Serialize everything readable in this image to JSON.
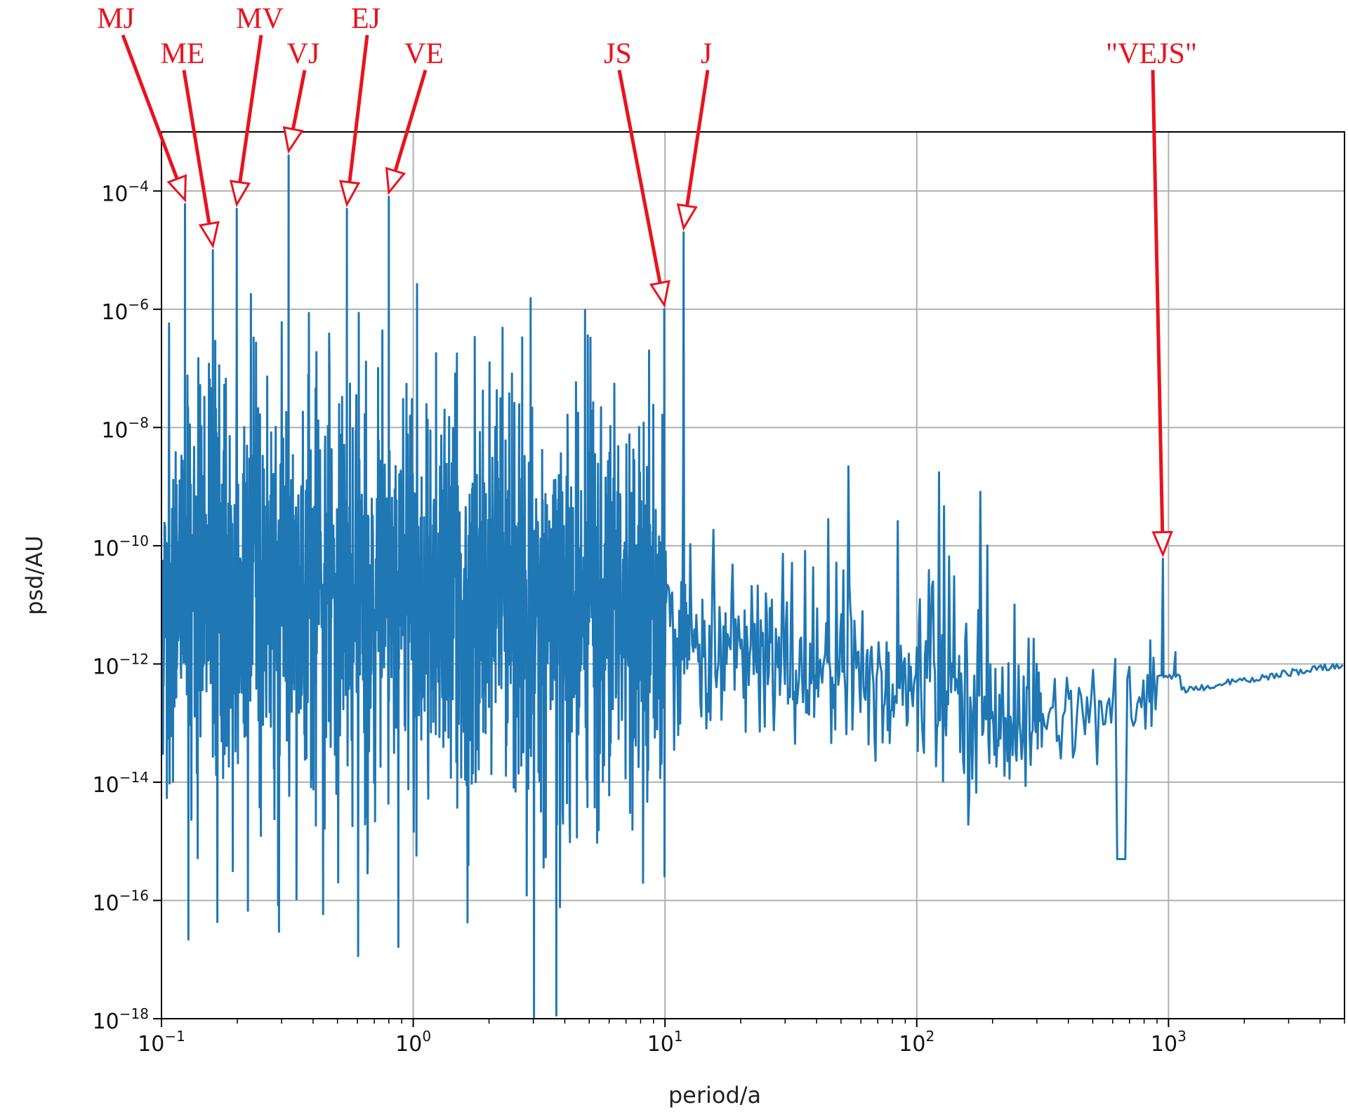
{
  "chart_data": {
    "type": "line",
    "xlabel": "period/a",
    "ylabel": "psd/AU",
    "xscale": "log",
    "yscale": "log",
    "xlim": [
      0.1,
      5000
    ],
    "ylim": [
      1e-18,
      0.001
    ],
    "grid": true,
    "x_ticks": [
      {
        "value": 0.1,
        "base": "10",
        "exp": "−1"
      },
      {
        "value": 1,
        "base": "10",
        "exp": "0"
      },
      {
        "value": 10,
        "base": "10",
        "exp": "1"
      },
      {
        "value": 100,
        "base": "10",
        "exp": "2"
      },
      {
        "value": 1000,
        "base": "10",
        "exp": "3"
      }
    ],
    "y_ticks": [
      {
        "value": 0.0001,
        "base": "10",
        "exp": "−4"
      },
      {
        "value": 1e-06,
        "base": "10",
        "exp": "−6"
      },
      {
        "value": 1e-08,
        "base": "10",
        "exp": "−8"
      },
      {
        "value": 1e-10,
        "base": "10",
        "exp": "−10"
      },
      {
        "value": 1e-12,
        "base": "10",
        "exp": "−12"
      },
      {
        "value": 1e-14,
        "base": "10",
        "exp": "−14"
      },
      {
        "value": 1e-16,
        "base": "10",
        "exp": "−16"
      },
      {
        "value": 1e-18,
        "base": "10",
        "exp": "−18"
      }
    ],
    "series_color": "#1f77b4",
    "peaks": [
      {
        "x": 0.124,
        "y": 6e-05
      },
      {
        "x": 0.16,
        "y": 1e-05
      },
      {
        "x": 0.199,
        "y": 5e-05
      },
      {
        "x": 0.32,
        "y": 0.0004
      },
      {
        "x": 0.545,
        "y": 5e-05
      },
      {
        "x": 0.8,
        "y": 8e-05
      },
      {
        "x": 9.93,
        "y": 1e-06
      },
      {
        "x": 11.86,
        "y": 2e-05
      },
      {
        "x": 950,
        "y": 6e-11
      }
    ],
    "annotations": [
      {
        "label": "MJ",
        "color": "#e8141e",
        "target_x": 0.124,
        "target_y": 6e-05
      },
      {
        "label": "ME",
        "color": "#e8141e",
        "target_x": 0.16,
        "target_y": 1e-05
      },
      {
        "label": "MV",
        "color": "#e8141e",
        "target_x": 0.199,
        "target_y": 5e-05
      },
      {
        "label": "VJ",
        "color": "#e8141e",
        "target_x": 0.32,
        "target_y": 0.0004
      },
      {
        "label": "EJ",
        "color": "#e8141e",
        "target_x": 0.545,
        "target_y": 5e-05
      },
      {
        "label": "VE",
        "color": "#e8141e",
        "target_x": 0.8,
        "target_y": 8e-05
      },
      {
        "label": "JS",
        "color": "#e8141e",
        "target_x": 9.93,
        "target_y": 1e-06
      },
      {
        "label": "J",
        "color": "#e8141e",
        "target_x": 11.86,
        "target_y": 2e-05
      },
      {
        "label": "\"VEJS\"",
        "color": "#e8141e",
        "target_x": 950,
        "target_y": 6e-11
      }
    ]
  }
}
